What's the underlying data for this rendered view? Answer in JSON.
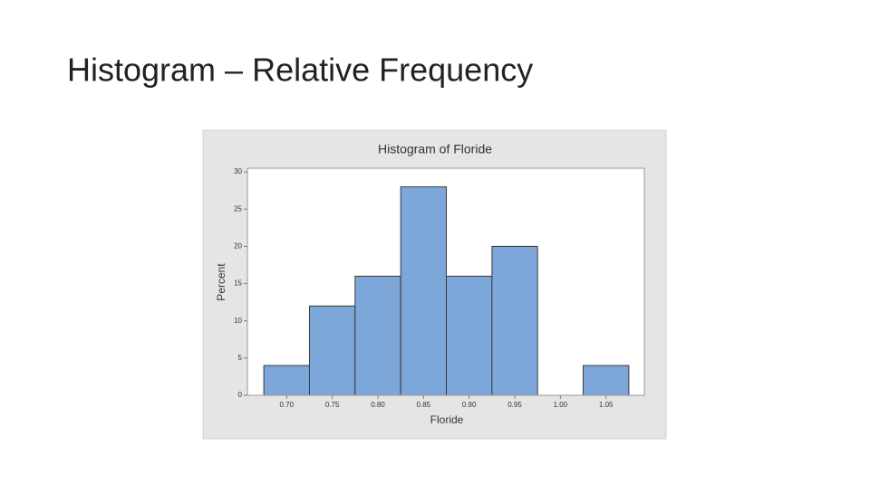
{
  "slide_title": "Histogram – Relative Frequency",
  "chart_data": {
    "type": "histogram",
    "title": "Histogram of Floride",
    "x_label": "Floride",
    "y_label": "Percent",
    "bins": [
      0.675,
      0.725,
      0.775,
      0.825,
      0.875,
      0.925,
      0.975,
      1.025,
      1.075
    ],
    "values": [
      4,
      12,
      16,
      28,
      16,
      20,
      0,
      4
    ],
    "color": "#7da6d9",
    "xlim": [
      0.657,
      1.092
    ],
    "xticks": [
      {
        "value": 0.7,
        "label": "0.70"
      },
      0.75,
      {
        "value": 0.8,
        "label": "0.80"
      },
      0.85,
      {
        "value": 0.9,
        "label": "0.90"
      },
      0.95,
      {
        "value": 1.0,
        "label": "1.00"
      },
      1.05
    ],
    "ylim": [
      0,
      30.5
    ],
    "yticks": [
      0,
      5,
      10,
      15,
      20,
      25,
      30
    ]
  }
}
